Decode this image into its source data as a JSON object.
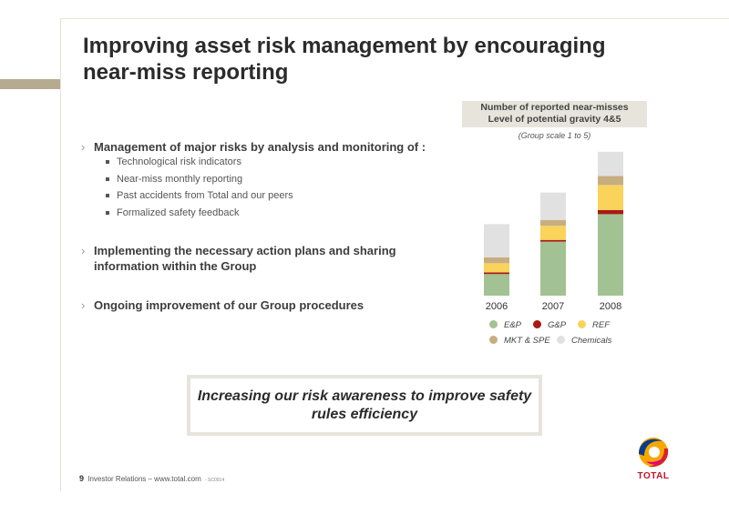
{
  "title": "Improving asset risk management by encouraging near-miss reporting",
  "bullets": [
    {
      "text": "Management of major risks by analysis and monitoring of :",
      "subitems": [
        "Technological risk indicators",
        "Near-miss monthly reporting",
        "Past accidents from Total and our peers",
        "Formalized safety feedback"
      ]
    },
    {
      "text": "Implementing the necessary action plans and sharing information within the Group"
    },
    {
      "text": "Ongoing improvement of our Group procedures"
    }
  ],
  "callout": "Increasing our risk awareness to improve safety rules efficiency",
  "footer": {
    "page": "9",
    "text": "Investor Relations – www.total.com",
    "code": "- SC0914"
  },
  "logo": {
    "text": "TOTAL"
  },
  "chart_data": {
    "type": "bar",
    "stacked": true,
    "title": "Number of reported near-misses\nLevel of potential gravity 4&5",
    "subtitle": "(Group scale 1 to 5)",
    "categories": [
      "2006",
      "2007",
      "2008"
    ],
    "series": [
      {
        "name": "E&P",
        "color": "#a3c293",
        "values": [
          26,
          65,
          98
        ]
      },
      {
        "name": "G&P",
        "color": "#a81a12",
        "values": [
          2,
          2,
          5
        ]
      },
      {
        "name": "REF",
        "color": "#f9d35a",
        "values": [
          11,
          17,
          30
        ]
      },
      {
        "name": "MKT & SPE",
        "color": "#c7ae80",
        "values": [
          7,
          7,
          11
        ]
      },
      {
        "name": "Chemicals",
        "color": "#e1e1e1",
        "values": [
          40,
          33,
          29
        ]
      }
    ],
    "ylim": [
      0,
      175
    ],
    "grid": false,
    "legend_position": "bottom"
  }
}
